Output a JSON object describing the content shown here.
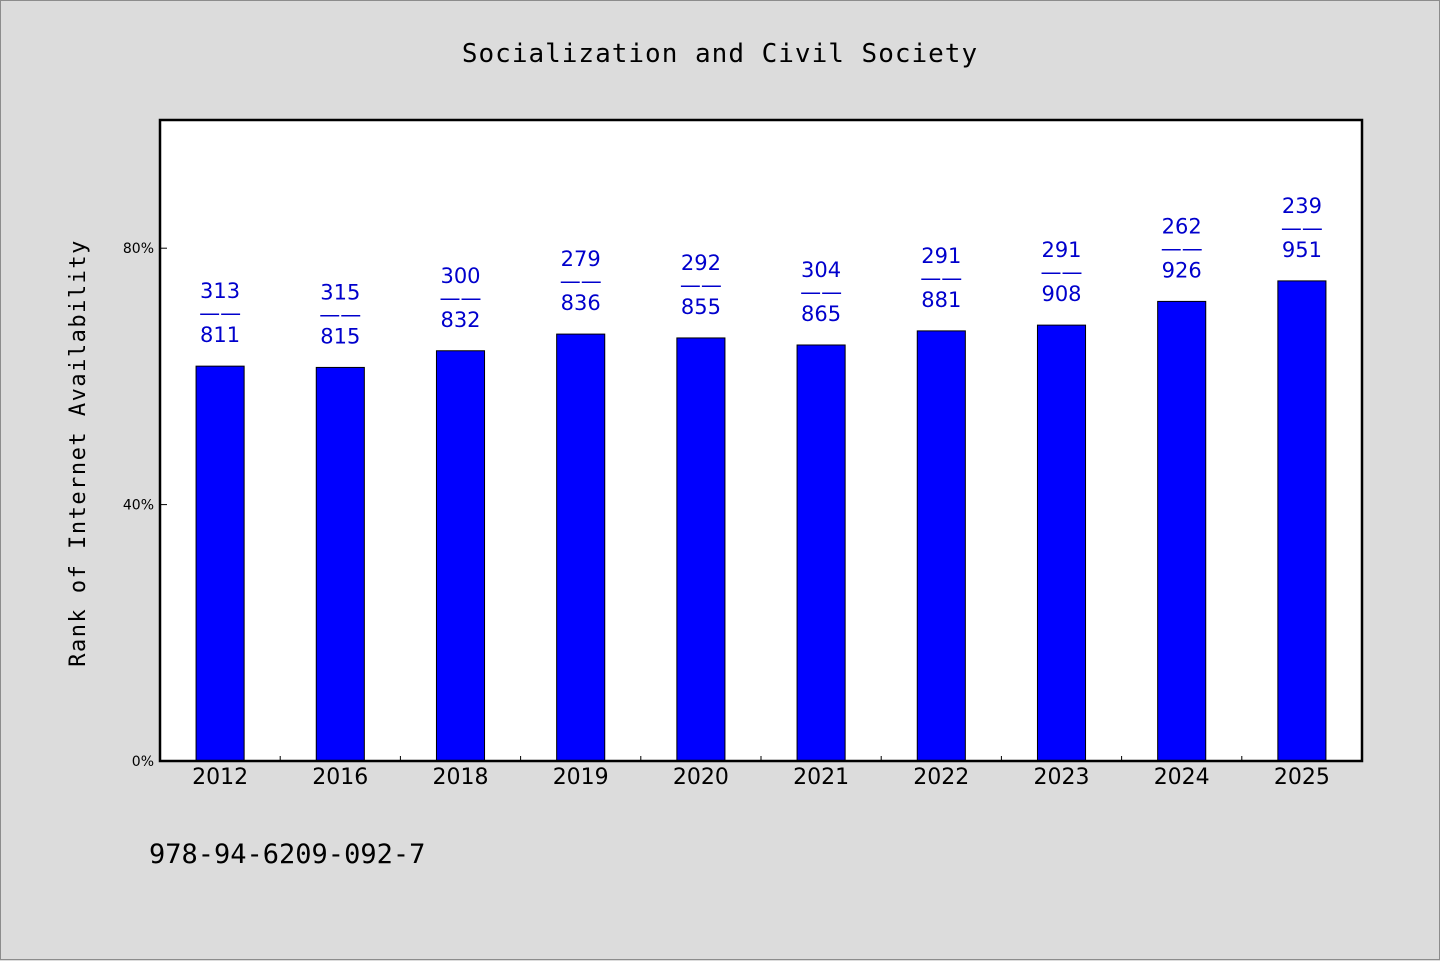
{
  "chart_data": {
    "type": "bar",
    "title": "Socialization and Civil Society",
    "ylabel": "Rank of Internet Availability",
    "xlabel": "",
    "ylim": [
      0,
      100
    ],
    "yticks": [
      {
        "value": 0,
        "label": "0%"
      },
      {
        "value": 40,
        "label": "40%"
      },
      {
        "value": 80,
        "label": "80%"
      }
    ],
    "categories": [
      "2012",
      "2016",
      "2018",
      "2019",
      "2020",
      "2021",
      "2022",
      "2023",
      "2024",
      "2025"
    ],
    "values": [
      61.6,
      61.4,
      64.0,
      66.6,
      66.0,
      64.9,
      67.1,
      68.0,
      71.7,
      74.9
    ],
    "data_labels": [
      {
        "top": "313",
        "sep": "——",
        "bottom": "811"
      },
      {
        "top": "315",
        "sep": "——",
        "bottom": "815"
      },
      {
        "top": "300",
        "sep": "——",
        "bottom": "832"
      },
      {
        "top": "279",
        "sep": "——",
        "bottom": "836"
      },
      {
        "top": "292",
        "sep": "——",
        "bottom": "855"
      },
      {
        "top": "304",
        "sep": "——",
        "bottom": "865"
      },
      {
        "top": "291",
        "sep": "——",
        "bottom": "881"
      },
      {
        "top": "291",
        "sep": "——",
        "bottom": "908"
      },
      {
        "top": "262",
        "sep": "——",
        "bottom": "926"
      },
      {
        "top": "239",
        "sep": "——",
        "bottom": "951"
      }
    ],
    "bar_color": "#0000ff",
    "label_color": "#0000cc",
    "grid": false,
    "legend": "none"
  },
  "footnote": "978-94-6209-092-7"
}
